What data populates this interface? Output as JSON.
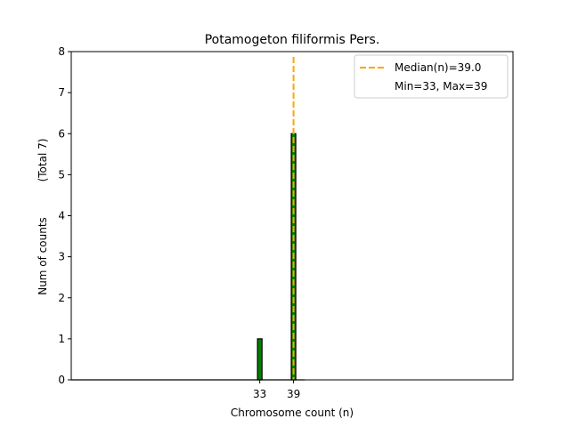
{
  "chart_data": {
    "type": "bar",
    "title": "Potamogeton filiformis Pers.",
    "xlabel": "Chromosome count (n)",
    "ylabel": "Num of counts",
    "ylabel_note": "(Total 7)",
    "x_ticks": [
      33,
      39
    ],
    "y_ticks": [
      0,
      1,
      2,
      3,
      4,
      5,
      6,
      7,
      8
    ],
    "ylim": [
      0,
      8
    ],
    "xlim": [
      -0.5,
      78
    ],
    "categories": [
      33,
      39
    ],
    "values": [
      1,
      6
    ],
    "bar_color": "#008000",
    "bar_edge_color": "#000000",
    "median_line": {
      "x": 39.0,
      "color": "#FFA500",
      "style": "dashed"
    },
    "legend": {
      "placement": "top-right",
      "entries": [
        {
          "label": "Median(n)=39.0",
          "marker": "dashed-line",
          "color": "#FFA500"
        },
        {
          "label": "Min=33, Max=39",
          "marker": "none"
        }
      ]
    },
    "grid": false
  }
}
